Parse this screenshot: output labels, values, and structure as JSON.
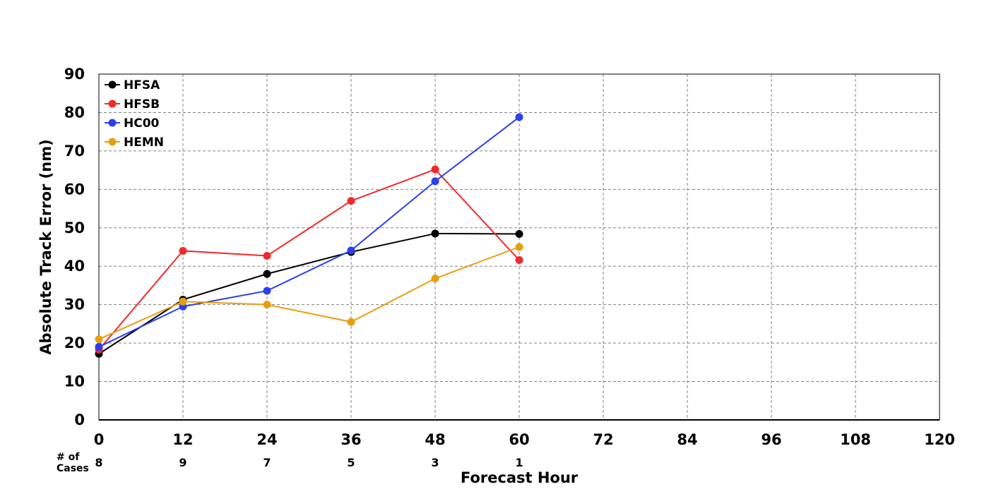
{
  "chart_data": {
    "type": "line",
    "xlabel": "Forecast Hour",
    "ylabel": "Absolute Track Error (nm)",
    "xlim": [
      0,
      120
    ],
    "ylim": [
      0,
      90
    ],
    "xticks": [
      "0",
      "12",
      "24",
      "36",
      "48",
      "60",
      "72",
      "84",
      "96",
      "108",
      "120"
    ],
    "yticks": [
      "0",
      "10",
      "20",
      "30",
      "40",
      "50",
      "60",
      "70",
      "80",
      "90"
    ],
    "grid": true,
    "legend_position": "top-left",
    "x": [
      0,
      12,
      24,
      36,
      48,
      60
    ],
    "series": [
      {
        "name": "HFSA",
        "color": "#000000",
        "values": [
          17.2,
          31.3,
          38.0,
          43.7,
          48.5,
          48.4
        ]
      },
      {
        "name": "HFSB",
        "color": "#f02a2a",
        "values": [
          18.3,
          44.0,
          42.7,
          57.0,
          65.2,
          41.6
        ]
      },
      {
        "name": "HC00",
        "color": "#2b3ff0",
        "values": [
          19.0,
          29.5,
          33.6,
          44.1,
          62.1,
          78.8
        ]
      },
      {
        "name": "HEMN",
        "color": "#e69f10",
        "values": [
          21.0,
          30.8,
          30.0,
          25.5,
          36.8,
          45.0
        ]
      }
    ],
    "cases_label_line1": "# of",
    "cases_label_line2": "Cases",
    "cases": [
      {
        "x": 0,
        "count": "8"
      },
      {
        "x": 12,
        "count": "9"
      },
      {
        "x": 24,
        "count": "7"
      },
      {
        "x": 36,
        "count": "5"
      },
      {
        "x": 48,
        "count": "3"
      },
      {
        "x": 60,
        "count": "1"
      }
    ]
  }
}
